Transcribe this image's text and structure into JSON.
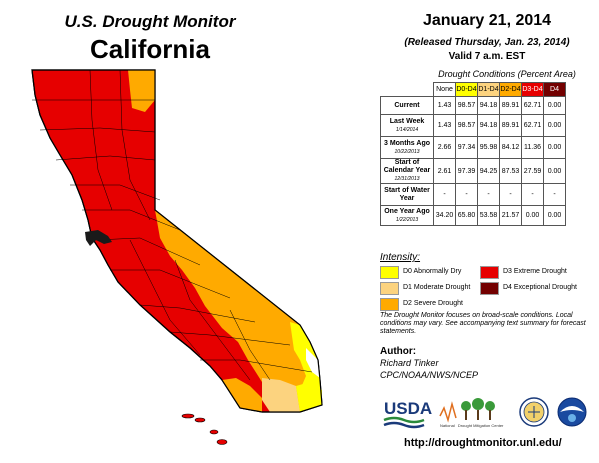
{
  "header": {
    "title": "U.S. Drought Monitor",
    "state": "California"
  },
  "info": {
    "date": "January 21, 2014",
    "released": "(Released Thursday, Jan. 23, 2014)",
    "valid": "Valid 7 a.m. EST"
  },
  "table": {
    "caption": "Drought Conditions (Percent Area)",
    "columns": [
      "None",
      "D0-D4",
      "D1-D4",
      "D2-D4",
      "D3-D4",
      "D4"
    ],
    "column_colors": [
      "#ffffff",
      "#ffff00",
      "#fcd37f",
      "#ffaa00",
      "#e60000",
      "#730000"
    ],
    "rows": [
      {
        "label": "Current",
        "sub": "",
        "values": [
          "1.43",
          "98.57",
          "94.18",
          "89.91",
          "62.71",
          "0.00"
        ]
      },
      {
        "label": "Last Week",
        "sub": "1/14/2014",
        "values": [
          "1.43",
          "98.57",
          "94.18",
          "89.91",
          "62.71",
          "0.00"
        ]
      },
      {
        "label": "3 Months Ago",
        "sub": "10/22/2013",
        "values": [
          "2.66",
          "97.34",
          "95.98",
          "84.12",
          "11.36",
          "0.00"
        ]
      },
      {
        "label": "Start of Calendar Year",
        "sub": "12/31/2013",
        "values": [
          "2.61",
          "97.39",
          "94.25",
          "87.53",
          "27.59",
          "0.00"
        ]
      },
      {
        "label": "Start of Water Year",
        "sub": "",
        "values": [
          "-",
          "-",
          "-",
          "-",
          "-",
          "-"
        ]
      },
      {
        "label": "One Year Ago",
        "sub": "1/22/2013",
        "values": [
          "34.20",
          "65.80",
          "53.58",
          "21.57",
          "0.00",
          "0.00"
        ]
      }
    ]
  },
  "legend": {
    "title": "Intensity:",
    "items": [
      {
        "label": "D0 Abnormally Dry",
        "color": "#ffff00"
      },
      {
        "label": "D1 Moderate Drought",
        "color": "#fcd37f"
      },
      {
        "label": "D2 Severe Drought",
        "color": "#ffaa00"
      },
      {
        "label": "D3 Extreme Drought",
        "color": "#e60000"
      },
      {
        "label": "D4 Exceptional Drought",
        "color": "#730000"
      }
    ]
  },
  "footnote": "The Drought Monitor focuses on broad-scale conditions. Local conditions may vary. See accompanying text summary for forecast statements.",
  "author": {
    "label": "Author:",
    "name": "Richard Tinker",
    "org": "CPC/NOAA/NWS/NCEP"
  },
  "logos": {
    "usda": "USDA",
    "ndmc_line1": "National",
    "ndmc_line2": "Drought Mitigation Center"
  },
  "url": "http://droughtmonitor.unl.edu/",
  "map_colors": {
    "d0": "#ffff00",
    "d1": "#fcd37f",
    "d2": "#ffaa00",
    "d3": "#e60000",
    "water": "#ffffff",
    "border": "#000000"
  }
}
